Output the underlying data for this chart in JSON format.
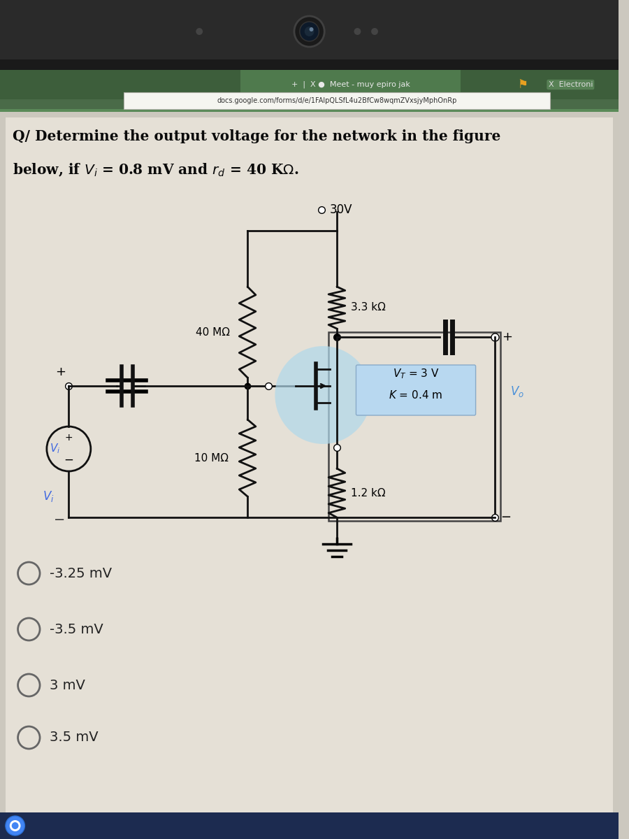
{
  "bg_bezel": "#2e2e2e",
  "bg_toolbar": "#4a6b4a",
  "bg_content": "#ccc8bf",
  "bg_page": "#e8e3da",
  "bg_url": "#f0f0ee",
  "url_text": "docs.google.com/forms/d/e/1FAlpQLSfL4u2BfCw8wqmZVxsjyMphOnRp",
  "tab_text": "+  |  X ●  Meet - muy epiro jak",
  "tab_right": "X  Electroni",
  "options": [
    "-3.25 mV",
    "-3.5 mV",
    "3 mV",
    "3.5 mV"
  ],
  "r1_label": "3.3 kΩ",
  "r2_label": "40 MΩ",
  "r3_label": "10 MΩ",
  "r4_label": "1.2 kΩ",
  "vt_label": "$V_T$ = 3 V",
  "k_label": "$K$ = 0.4 m",
  "vo_label": "$V_o$",
  "vi_label": "$V_i$",
  "supply": "30V",
  "wire_color": "#111111",
  "mosfet_bg": "#a8d8ea",
  "mosfet_box_bg": "#b8d8f0"
}
